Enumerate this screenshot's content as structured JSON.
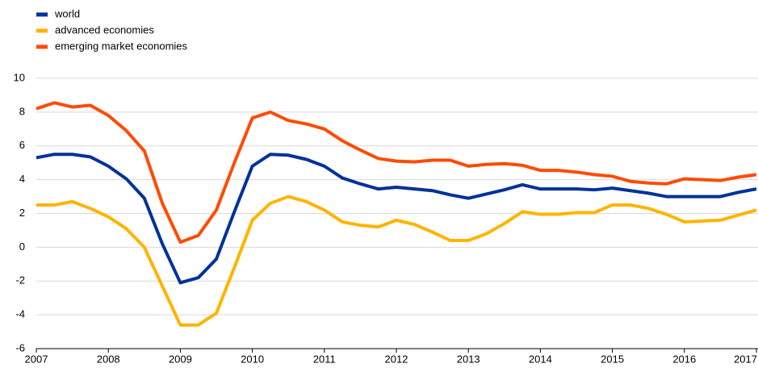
{
  "chart_data": {
    "type": "line",
    "x": [
      2007,
      2007.25,
      2007.5,
      2007.75,
      2008,
      2008.25,
      2008.5,
      2008.75,
      2009,
      2009.25,
      2009.5,
      2009.75,
      2010,
      2010.25,
      2010.5,
      2010.75,
      2011,
      2011.25,
      2011.5,
      2011.75,
      2012,
      2012.25,
      2012.5,
      2012.75,
      2013,
      2013.25,
      2013.5,
      2013.75,
      2014,
      2014.25,
      2014.5,
      2014.75,
      2015,
      2015.25,
      2015.5,
      2015.75,
      2016,
      2016.25,
      2016.5,
      2016.75,
      2017
    ],
    "series": [
      {
        "name": "world",
        "color": "#003299",
        "values": [
          5.3,
          5.5,
          5.5,
          5.35,
          4.8,
          4.05,
          2.9,
          0.2,
          -2.1,
          -1.8,
          -0.7,
          2.1,
          4.8,
          5.5,
          5.45,
          5.2,
          4.8,
          4.1,
          3.75,
          3.45,
          3.55,
          3.45,
          3.35,
          3.1,
          2.9,
          3.15,
          3.4,
          3.7,
          3.45,
          3.45,
          3.45,
          3.4,
          3.5,
          3.35,
          3.2,
          3.0,
          3.0,
          3.0,
          3.0,
          3.25,
          3.45
        ]
      },
      {
        "name": "advanced economies",
        "color": "#ffb400",
        "values": [
          2.5,
          2.5,
          2.7,
          2.3,
          1.8,
          1.1,
          0.0,
          -2.3,
          -4.6,
          -4.6,
          -3.9,
          -1.2,
          1.6,
          2.6,
          3.0,
          2.7,
          2.2,
          1.5,
          1.3,
          1.2,
          1.6,
          1.35,
          0.9,
          0.4,
          0.4,
          0.8,
          1.4,
          2.1,
          1.95,
          1.95,
          2.05,
          2.05,
          2.5,
          2.5,
          2.3,
          1.95,
          1.5,
          1.55,
          1.6,
          1.9,
          2.2
        ]
      },
      {
        "name": "emerging market economies",
        "color": "#ff4b00",
        "values": [
          8.2,
          8.55,
          8.3,
          8.4,
          7.8,
          6.9,
          5.7,
          2.6,
          0.3,
          0.7,
          2.2,
          5.0,
          7.65,
          8.0,
          7.5,
          7.3,
          7.0,
          6.3,
          5.75,
          5.25,
          5.1,
          5.05,
          5.15,
          5.15,
          4.8,
          4.9,
          4.95,
          4.85,
          4.55,
          4.55,
          4.45,
          4.3,
          4.2,
          3.9,
          3.8,
          3.75,
          4.05,
          4.0,
          3.95,
          4.15,
          4.3
        ]
      }
    ],
    "xlim": [
      2007,
      2017
    ],
    "xticks": [
      2007,
      2008,
      2009,
      2010,
      2011,
      2012,
      2013,
      2014,
      2015,
      2016,
      2017
    ],
    "ylim": [
      -6,
      10
    ],
    "yticks": [
      -6,
      -4,
      -2,
      0,
      2,
      4,
      6,
      8,
      10
    ],
    "grid": true,
    "legend": "top-left"
  }
}
